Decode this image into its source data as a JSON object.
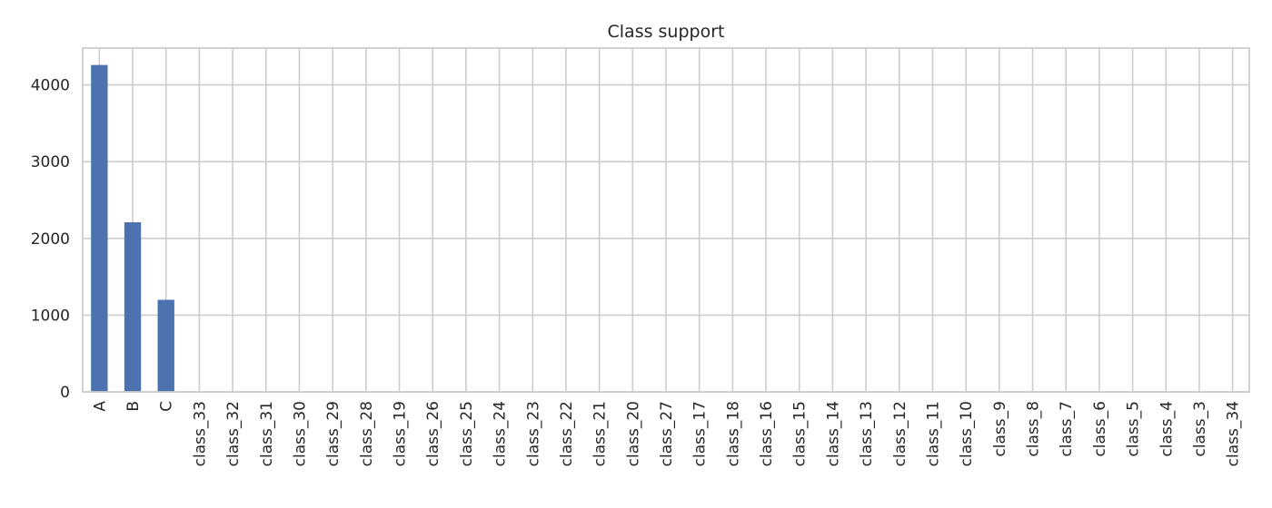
{
  "chart_data": {
    "type": "bar",
    "title": "Class support",
    "xlabel": "",
    "ylabel": "",
    "categories": [
      "A",
      "B",
      "C",
      "class_33",
      "class_32",
      "class_31",
      "class_30",
      "class_29",
      "class_28",
      "class_19",
      "class_26",
      "class_25",
      "class_24",
      "class_23",
      "class_22",
      "class_21",
      "class_20",
      "class_27",
      "class_17",
      "class_18",
      "class_16",
      "class_15",
      "class_14",
      "class_13",
      "class_12",
      "class_11",
      "class_10",
      "class_9",
      "class_8",
      "class_7",
      "class_6",
      "class_5",
      "class_4",
      "class_3",
      "class_34"
    ],
    "values": [
      4260,
      2210,
      1200,
      3,
      3,
      3,
      3,
      3,
      3,
      3,
      3,
      3,
      3,
      3,
      3,
      3,
      3,
      3,
      3,
      3,
      3,
      3,
      3,
      3,
      3,
      3,
      3,
      3,
      3,
      3,
      3,
      3,
      3,
      3,
      3
    ],
    "ylim": [
      0,
      4480
    ],
    "yticks": [
      0,
      1000,
      2000,
      3000,
      4000
    ],
    "grid": true,
    "legend": "none",
    "colors": {
      "bar": "#4c72b0",
      "grid": "#cccccc",
      "frame": "#cccccc",
      "text": "#262626"
    }
  }
}
